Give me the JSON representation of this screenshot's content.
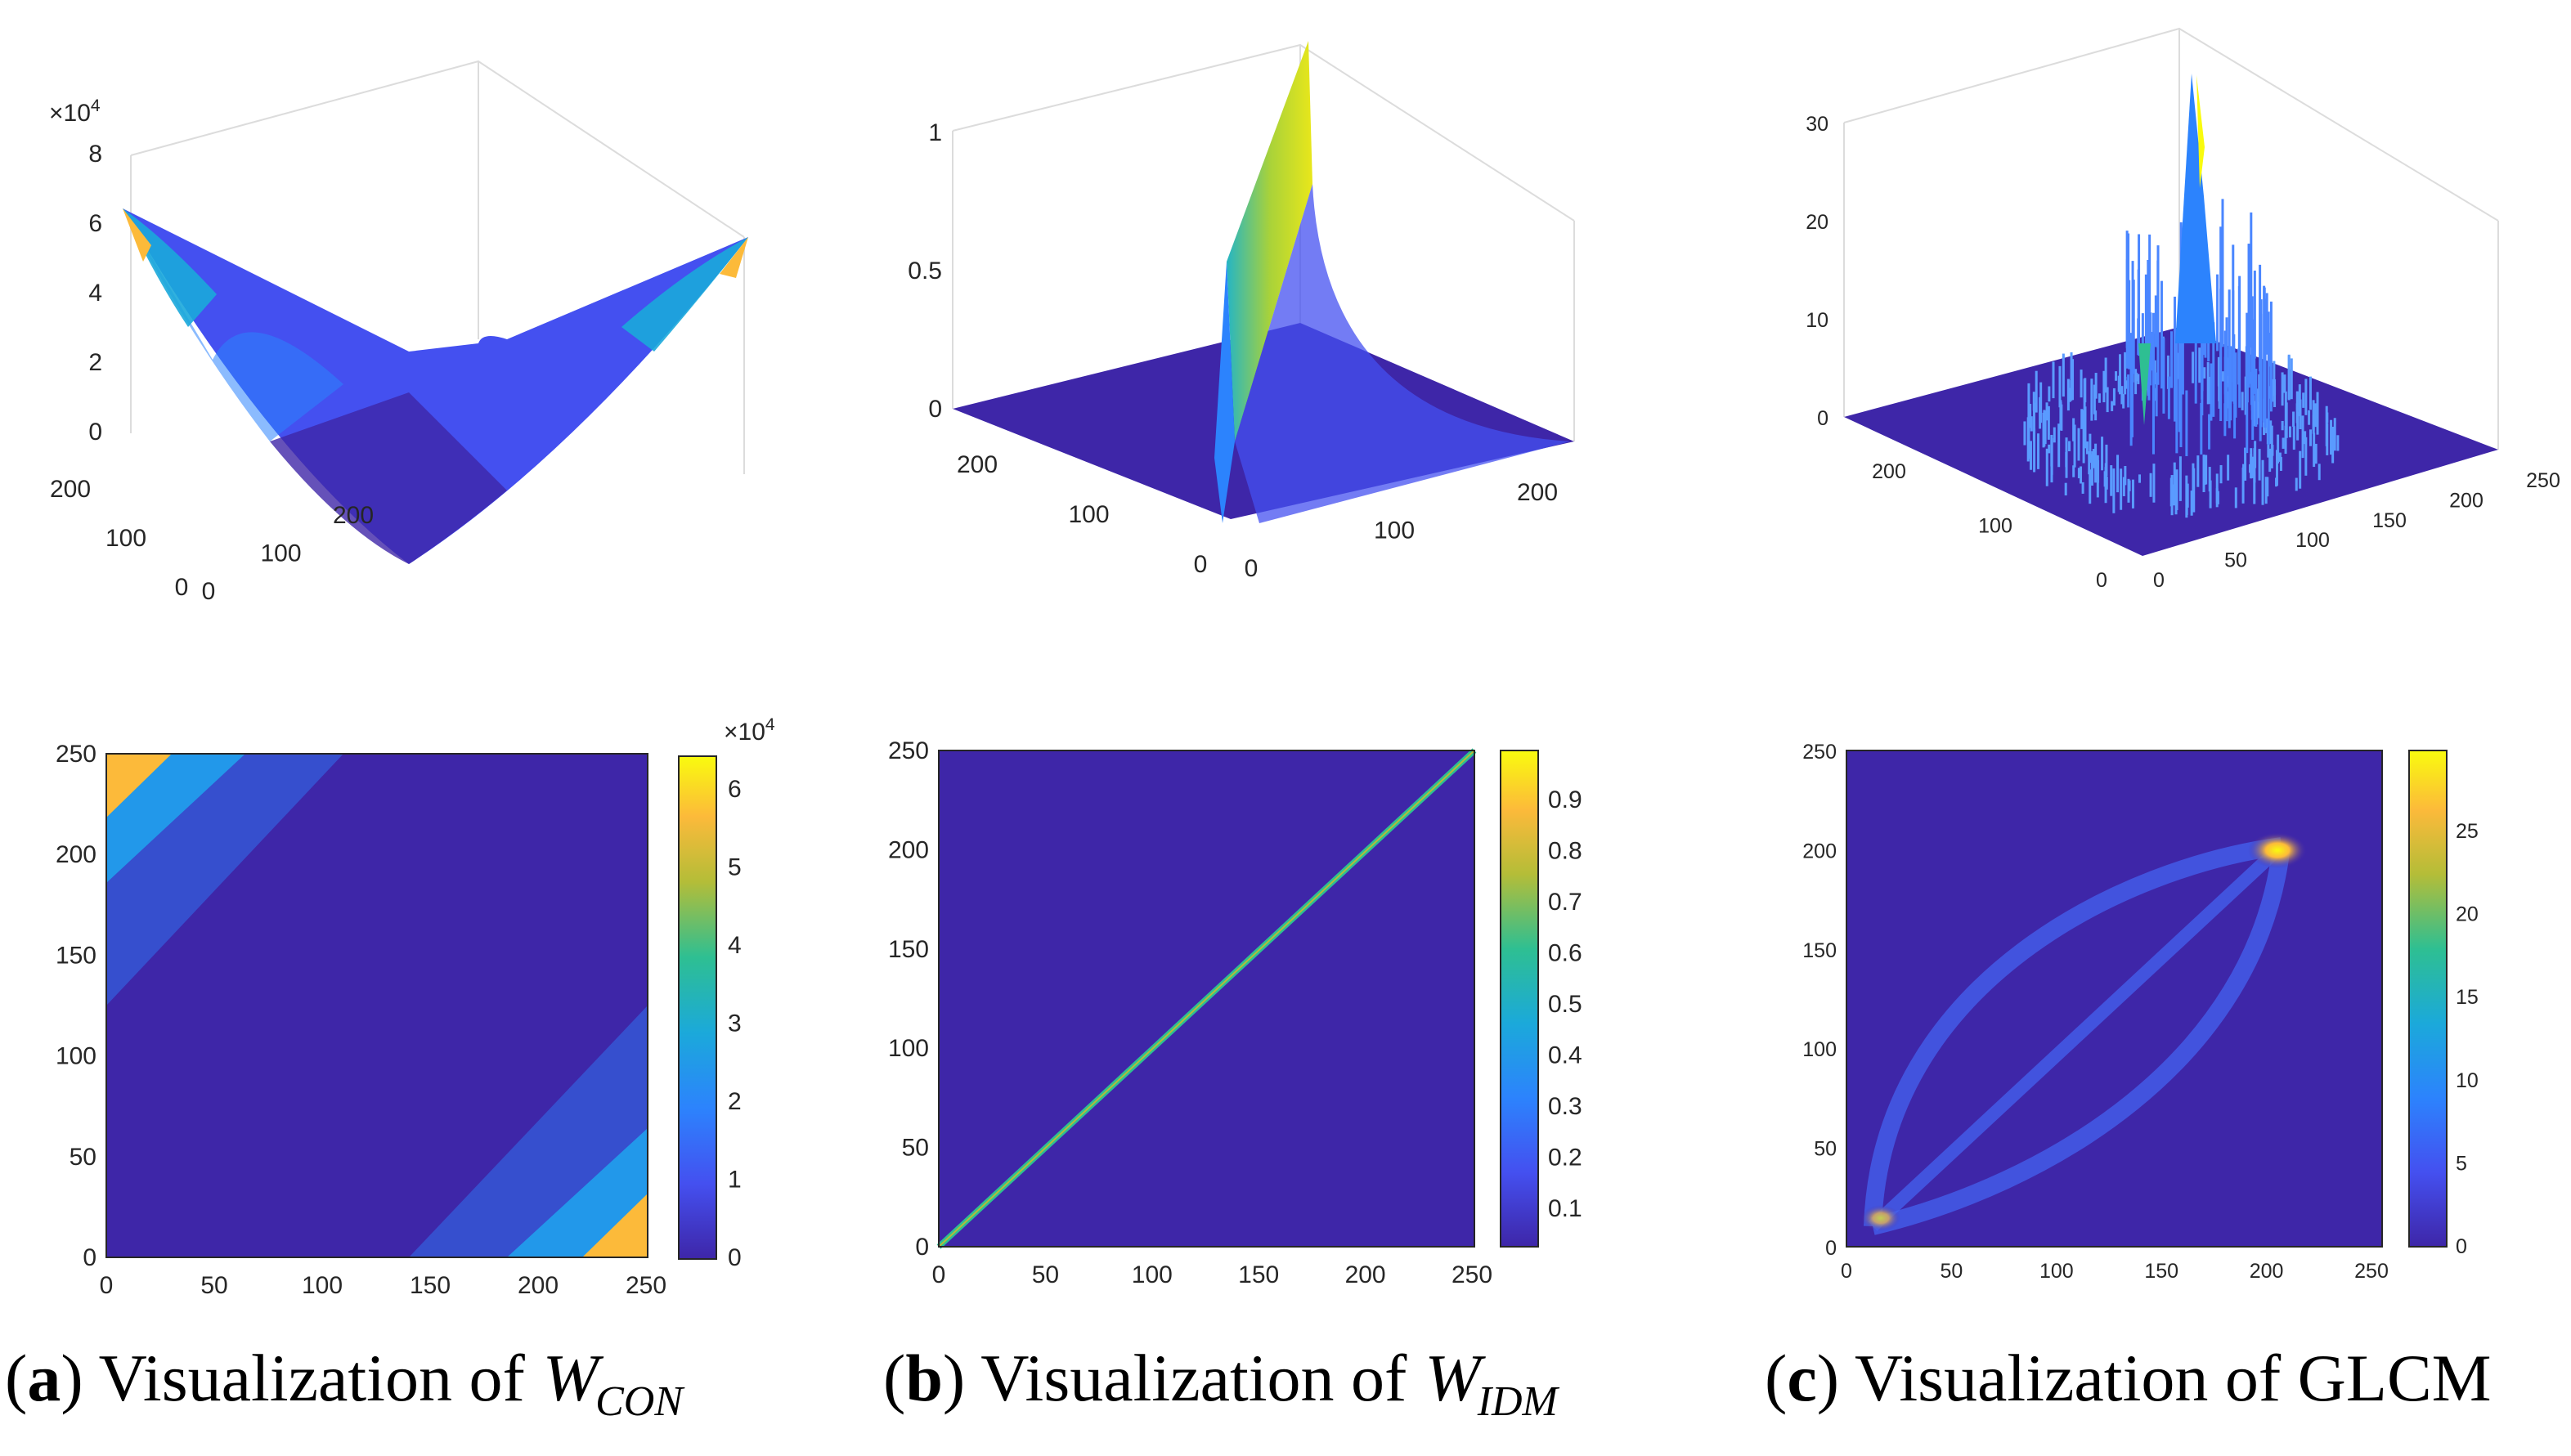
{
  "captions": [
    {
      "open": "(",
      "letter": "a",
      "close": ")",
      "text": " Visualization of",
      "symbol": "W",
      "subscript": "CON"
    },
    {
      "open": "(",
      "letter": "b",
      "close": ")",
      "text": " Visualization of",
      "symbol": "W",
      "subscript": "IDM"
    },
    {
      "open": "(",
      "letter": "c",
      "close": ")",
      "text": " Visualization of GLCM",
      "symbol": "",
      "subscript": ""
    }
  ],
  "colors": {
    "colormap": "parula",
    "low": "#3e26a8",
    "mid": "#1cb0d0",
    "high": "#f9fb0e"
  },
  "chart_data": [
    {
      "id": "a-surface",
      "type": "surface3d",
      "function": "(i-j)^2",
      "x_range": [
        0,
        255
      ],
      "y_range": [
        0,
        255
      ],
      "z_range": [
        0,
        80000
      ],
      "z_multiplier": "×10^4",
      "z_ticks": [
        "0",
        "2",
        "4",
        "6",
        "8"
      ],
      "x_ticks": [
        "0",
        "100",
        "200"
      ],
      "y_ticks": [
        "0",
        "100",
        "200"
      ]
    },
    {
      "id": "b-surface",
      "type": "surface3d",
      "function": "1/(1+(i-j)^2)",
      "x_range": [
        0,
        255
      ],
      "y_range": [
        0,
        255
      ],
      "z_range": [
        0,
        1
      ],
      "z_ticks": [
        "0",
        "0.5",
        "1"
      ],
      "x_ticks": [
        "0",
        "100",
        "200"
      ],
      "y_ticks": [
        "0",
        "100",
        "200"
      ]
    },
    {
      "id": "c-surface",
      "type": "surface3d",
      "function": "GLCM counts",
      "x_range": [
        0,
        255
      ],
      "y_range": [
        0,
        255
      ],
      "z_range": [
        0,
        30
      ],
      "z_ticks": [
        "0",
        "10",
        "20",
        "30"
      ],
      "x_ticks": [
        "0",
        "50",
        "100",
        "150",
        "200",
        "250"
      ],
      "y_ticks": [
        "0",
        "100",
        "200"
      ]
    },
    {
      "id": "a-heatmap",
      "type": "heatmap",
      "function": "(i-j)^2",
      "x_range": [
        0,
        255
      ],
      "y_range": [
        0,
        255
      ],
      "x_ticks": [
        "0",
        "50",
        "100",
        "150",
        "200",
        "250"
      ],
      "y_ticks": [
        "0",
        "50",
        "100",
        "150",
        "200",
        "250"
      ],
      "colorbar": {
        "multiplier": "×10^4",
        "range": [
          0,
          65025
        ],
        "ticks": [
          "0",
          "1",
          "2",
          "3",
          "4",
          "5",
          "6"
        ]
      }
    },
    {
      "id": "b-heatmap",
      "type": "heatmap",
      "function": "1/(1+(i-j)^2)",
      "x_range": [
        0,
        255
      ],
      "y_range": [
        0,
        255
      ],
      "x_ticks": [
        "0",
        "50",
        "100",
        "150",
        "200",
        "250"
      ],
      "y_ticks": [
        "0",
        "50",
        "100",
        "150",
        "200",
        "250"
      ],
      "colorbar": {
        "range": [
          0,
          1
        ],
        "ticks": [
          "0.1",
          "0.2",
          "0.3",
          "0.4",
          "0.5",
          "0.6",
          "0.7",
          "0.8",
          "0.9"
        ]
      }
    },
    {
      "id": "c-heatmap",
      "type": "heatmap",
      "function": "GLCM counts",
      "x_range": [
        0,
        255
      ],
      "y_range": [
        0,
        255
      ],
      "x_ticks": [
        "0",
        "50",
        "100",
        "150",
        "200",
        "250"
      ],
      "y_ticks": [
        "0",
        "50",
        "100",
        "150",
        "200",
        "250"
      ],
      "colorbar": {
        "range": [
          0,
          30
        ],
        "ticks": [
          "0",
          "5",
          "10",
          "15",
          "20",
          "25"
        ]
      }
    }
  ]
}
